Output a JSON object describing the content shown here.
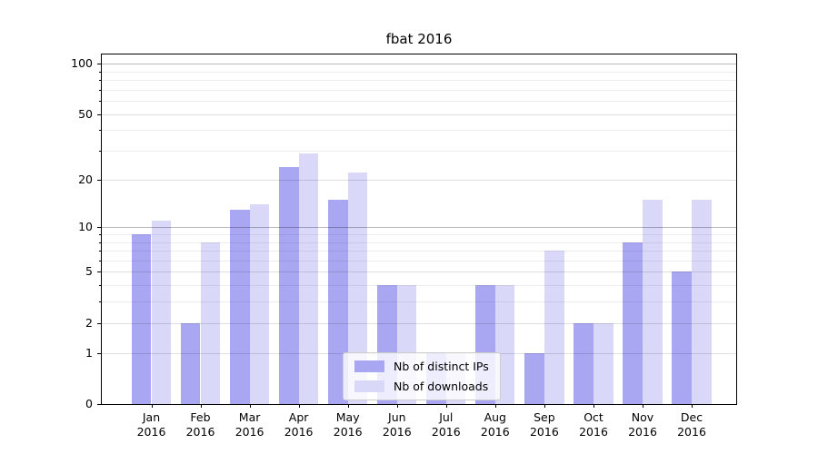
{
  "title": "fbat 2016",
  "colors": {
    "ips_bar": "#a9a7f2",
    "downloads_bar": "#d9d8f8",
    "axis": "#000000",
    "grid_major": "#b9b9b9",
    "grid_minor": "#ededed",
    "legend_border": "#cccccc"
  },
  "legend": {
    "items": [
      {
        "label": "Nb of distinct IPs",
        "series": "ips"
      },
      {
        "label": "Nb of downloads",
        "series": "downloads"
      }
    ]
  },
  "chart_data": {
    "type": "bar",
    "title": "fbat 2016",
    "categories": [
      "Jan",
      "Feb",
      "Mar",
      "Apr",
      "May",
      "Jun",
      "Jul",
      "Aug",
      "Sep",
      "Oct",
      "Nov",
      "Dec"
    ],
    "year_label": "2016",
    "series": [
      {
        "name": "Nb of distinct IPs",
        "color": "#a9a7f2",
        "values": [
          9,
          2,
          13,
          24,
          15,
          4,
          1,
          4,
          1,
          2,
          8,
          5
        ]
      },
      {
        "name": "Nb of downloads",
        "color": "#d9d8f8",
        "values": [
          11,
          8,
          14,
          29,
          22,
          4,
          1,
          4,
          7,
          2,
          15,
          15
        ]
      }
    ],
    "xlabel": "",
    "ylabel": "",
    "yscale": "log1p",
    "ylim": [
      0,
      113
    ],
    "y_major_ticks": [
      0,
      1,
      2,
      5,
      10,
      20,
      50,
      100
    ],
    "y_minor_ticks": [
      3,
      4,
      6,
      7,
      8,
      9,
      30,
      40,
      60,
      70,
      80,
      90
    ],
    "grid": "both",
    "legend_position": "lower-center"
  }
}
